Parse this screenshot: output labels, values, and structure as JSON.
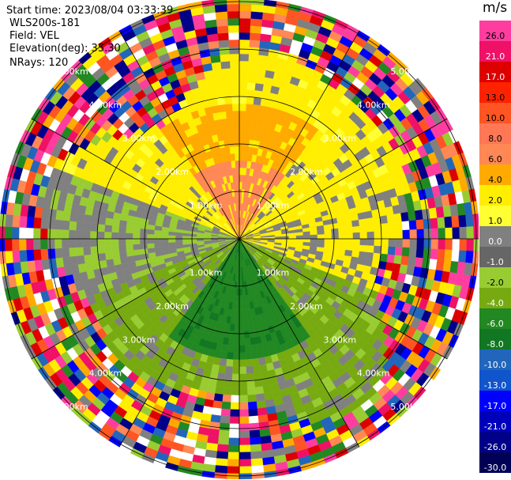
{
  "info": {
    "start_time": "Start time: 2023/08/04 03:33:39",
    "instrument": "WLS200s-181",
    "field": "Field: VEL",
    "elevation": "Elevation(deg): 35.30",
    "nrays": "NRays: 120"
  },
  "colorbar": {
    "unit": "m/s",
    "ticks": [
      "26.0",
      "21.0",
      "17.0",
      "13.0",
      "10.0",
      "8.0",
      "6.0",
      "4.0",
      "2.0",
      "1.0",
      "0.0",
      "-1.0",
      "-2.0",
      "-4.0",
      "-6.0",
      "-8.0",
      "-10.0",
      "-13.0",
      "-17.0",
      "-21.0",
      "-26.0",
      "-30.0"
    ],
    "colors": [
      "#ff3d9e",
      "#ee1166",
      "#dd0000",
      "#ff2200",
      "#ff5522",
      "#ff7755",
      "#ff8855",
      "#ffaa00",
      "#ffee00",
      "#ffff33",
      "#808080",
      "#666666",
      "#99cc33",
      "#77aa11",
      "#228822",
      "#117722",
      "#2266bb",
      "#1155cc",
      "#0000ff",
      "#0000bb",
      "#000088",
      "#000055"
    ]
  },
  "chart_data": {
    "type": "polar-ppi",
    "field": "VEL",
    "units": "m/s",
    "n_rays": 120,
    "elevation_deg": 35.3,
    "range_rings_km": [
      1.0,
      2.0,
      3.0,
      4.0,
      5.0
    ],
    "ring_labels": [
      "1.00km",
      "2.00km",
      "3.00km",
      "4.00km",
      "5.00km"
    ],
    "color_levels": [
      -30,
      -26,
      -21,
      -17,
      -13,
      -10,
      -8,
      -6,
      -4,
      -2,
      -1,
      0,
      1,
      2,
      4,
      6,
      8,
      10,
      13,
      17,
      21,
      26
    ],
    "radial_pattern": "near-field: orange/yellow positive velocities to the north, green/olive negative velocities to the south, gray near zero east-west; beyond ~3.5 km noisy multicolored returns"
  }
}
